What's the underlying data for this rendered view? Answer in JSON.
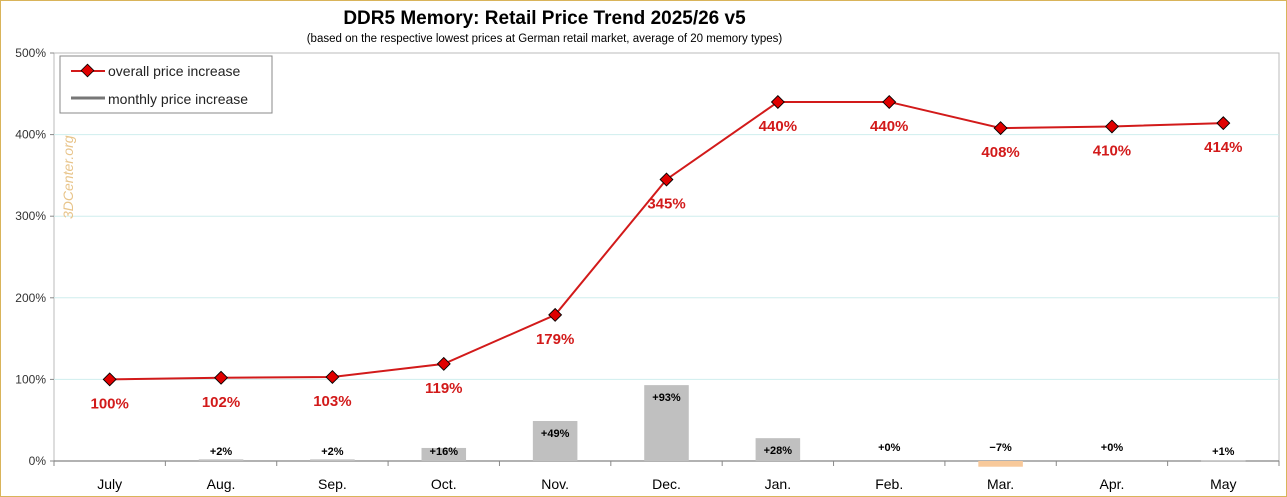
{
  "chart_data": {
    "type": "line",
    "title": "DDR5 Memory: Retail Price Trend 2025/26 v5",
    "subtitle": "(based on the respective lowest prices at German retail market, average of 20 memory types)",
    "categories": [
      "July",
      "Aug.",
      "Sep.",
      "Oct.",
      "Nov.",
      "Dec.",
      "Jan.",
      "Feb.",
      "Mar.",
      "Apr.",
      "May"
    ],
    "y_ticks": [
      "0%",
      "100%",
      "200%",
      "300%",
      "400%",
      "500%"
    ],
    "ylim": [
      0,
      500
    ],
    "grid": true,
    "legend_position": "top-left",
    "watermark": "3DCenter.org",
    "series": [
      {
        "name": "overall price increase",
        "kind": "line",
        "color": "#d21a1a",
        "values": [
          100,
          102,
          103,
          119,
          179,
          345,
          440,
          440,
          408,
          410,
          414
        ],
        "labels": [
          "100%",
          "102%",
          "103%",
          "119%",
          "179%",
          "345%",
          "440%",
          "440%",
          "408%",
          "410%",
          "414%"
        ]
      },
      {
        "name": "monthly price increase",
        "kind": "bar",
        "color": "#c0c0c0",
        "negative_color": "#f8c99a",
        "values": [
          null,
          2,
          2,
          16,
          49,
          93,
          28,
          0,
          -7,
          0,
          1
        ],
        "labels": [
          "",
          "+2%",
          "+2%",
          "+16%",
          "+49%",
          "+93%",
          "+28%",
          "+0%",
          "−7%",
          "+0%",
          "+1%"
        ]
      }
    ]
  }
}
